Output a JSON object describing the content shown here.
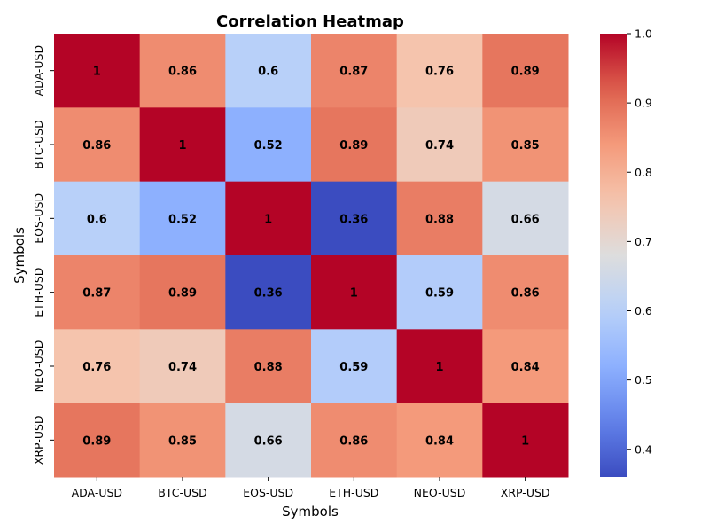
{
  "chart_data": {
    "type": "heatmap",
    "title": "Correlation Heatmap",
    "xlabel": "Symbols",
    "ylabel": "Symbols",
    "x_categories": [
      "ADA-USD",
      "BTC-USD",
      "EOS-USD",
      "ETH-USD",
      "NEO-USD",
      "XRP-USD"
    ],
    "y_categories": [
      "ADA-USD",
      "BTC-USD",
      "EOS-USD",
      "ETH-USD",
      "NEO-USD",
      "XRP-USD"
    ],
    "values": [
      [
        1,
        0.86,
        0.6,
        0.87,
        0.76,
        0.89
      ],
      [
        0.86,
        1,
        0.52,
        0.89,
        0.74,
        0.85
      ],
      [
        0.6,
        0.52,
        1,
        0.36,
        0.88,
        0.66
      ],
      [
        0.87,
        0.89,
        0.36,
        1,
        0.59,
        0.86
      ],
      [
        0.76,
        0.74,
        0.88,
        0.59,
        1,
        0.84
      ],
      [
        0.89,
        0.85,
        0.66,
        0.86,
        0.84,
        1
      ]
    ],
    "value_labels": [
      [
        "1",
        "0.86",
        "0.6",
        "0.87",
        "0.76",
        "0.89"
      ],
      [
        "0.86",
        "1",
        "0.52",
        "0.89",
        "0.74",
        "0.85"
      ],
      [
        "0.6",
        "0.52",
        "1",
        "0.36",
        "0.88",
        "0.66"
      ],
      [
        "0.87",
        "0.89",
        "0.36",
        "1",
        "0.59",
        "0.86"
      ],
      [
        "0.76",
        "0.74",
        "0.88",
        "0.59",
        "1",
        "0.84"
      ],
      [
        "0.89",
        "0.85",
        "0.66",
        "0.86",
        "0.84",
        "1"
      ]
    ],
    "colormap": "coolwarm",
    "color_range": [
      0.36,
      1.0
    ],
    "colorbar_ticks": [
      0.4,
      0.5,
      0.6,
      0.7,
      0.8,
      0.9,
      1.0
    ],
    "colorbar_tick_labels": [
      "0.4",
      "0.5",
      "0.6",
      "0.7",
      "0.8",
      "0.9",
      "1.0"
    ],
    "annotation_color": "#000000"
  }
}
